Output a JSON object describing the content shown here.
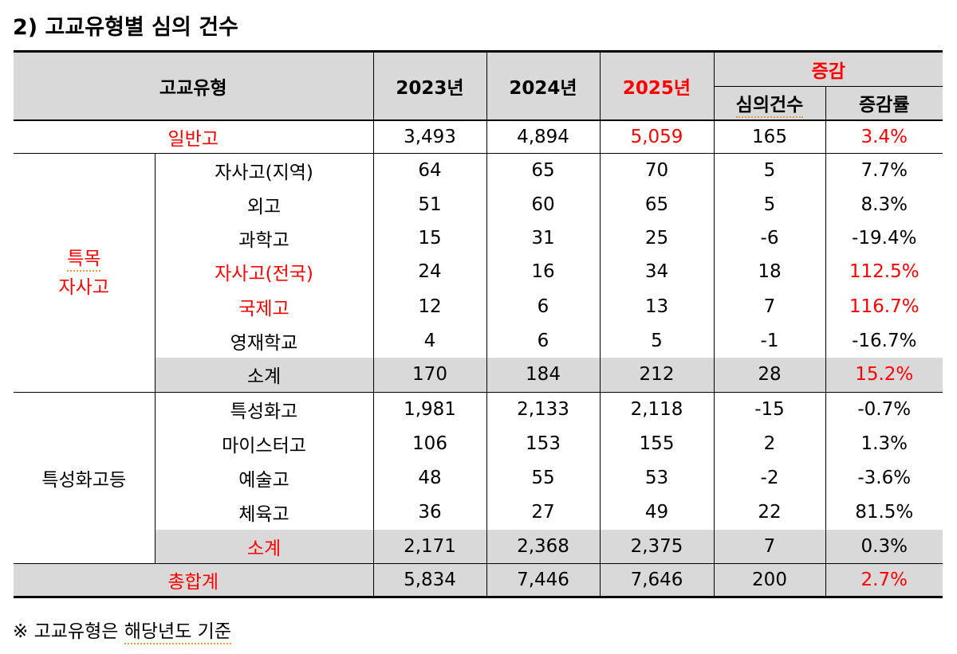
{
  "title": "2) 고교유형별 심의 건수",
  "header": {
    "type": "고교유형",
    "y2023": "2023년",
    "y2024": "2024년",
    "y2025": "2025년",
    "change": "증감",
    "count": "심의건수",
    "rate": "증감률"
  },
  "general": {
    "label": "일반고",
    "v2023": "3,493",
    "v2024": "4,894",
    "v2025": "5,059",
    "count": "165",
    "rate": "3.4%"
  },
  "group1": {
    "label_line1": "특목",
    "label_line2": "자사고",
    "rows": [
      {
        "label": "자사고(지역)",
        "v2023": "64",
        "v2024": "65",
        "v2025": "70",
        "count": "5",
        "rate": "7.7%"
      },
      {
        "label": "외고",
        "v2023": "51",
        "v2024": "60",
        "v2025": "65",
        "count": "5",
        "rate": "8.3%"
      },
      {
        "label": "과학고",
        "v2023": "15",
        "v2024": "31",
        "v2025": "25",
        "count": "-6",
        "rate": "-19.4%"
      },
      {
        "label": "자사고(전국)",
        "v2023": "24",
        "v2024": "16",
        "v2025": "34",
        "count": "18",
        "rate": "112.5%"
      },
      {
        "label": "국제고",
        "v2023": "12",
        "v2024": "6",
        "v2025": "13",
        "count": "7",
        "rate": "116.7%"
      },
      {
        "label": "영재학교",
        "v2023": "4",
        "v2024": "6",
        "v2025": "5",
        "count": "-1",
        "rate": "-16.7%"
      }
    ],
    "subtotal": {
      "label": "소계",
      "v2023": "170",
      "v2024": "184",
      "v2025": "212",
      "count": "28",
      "rate": "15.2%"
    }
  },
  "group2": {
    "label": "특성화고등",
    "rows": [
      {
        "label": "특성화고",
        "v2023": "1,981",
        "v2024": "2,133",
        "v2025": "2,118",
        "count": "-15",
        "rate": "-0.7%"
      },
      {
        "label": "마이스터고",
        "v2023": "106",
        "v2024": "153",
        "v2025": "155",
        "count": "2",
        "rate": "1.3%"
      },
      {
        "label": "예술고",
        "v2023": "48",
        "v2024": "55",
        "v2025": "53",
        "count": "-2",
        "rate": "-3.6%"
      },
      {
        "label": "체육고",
        "v2023": "36",
        "v2024": "27",
        "v2025": "49",
        "count": "22",
        "rate": "81.5%"
      }
    ],
    "subtotal": {
      "label": "소계",
      "v2023": "2,171",
      "v2024": "2,368",
      "v2025": "2,375",
      "count": "7",
      "rate": "0.3%"
    }
  },
  "total": {
    "label": "총합계",
    "v2023": "5,834",
    "v2024": "7,446",
    "v2025": "7,646",
    "count": "200",
    "rate": "2.7%"
  },
  "note": {
    "symbol": "※",
    "text1": "고교유형은",
    "text2": "해당년도 기준"
  },
  "colors": {
    "accent_red": "#ff0000",
    "header_gray": "#d9d9d9"
  }
}
